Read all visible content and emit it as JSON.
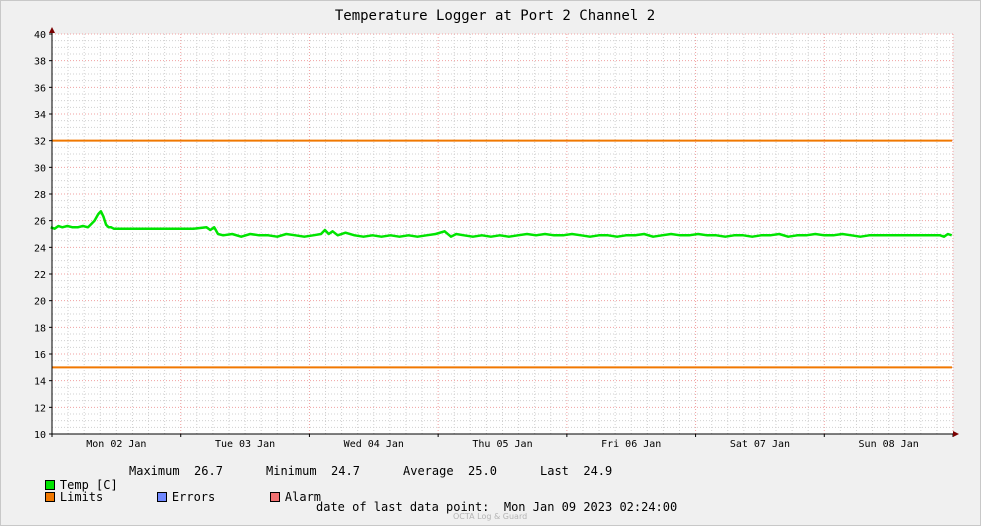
{
  "chart_data": {
    "type": "line",
    "title": "Temperature Logger at Port 2 Channel 2",
    "ylim": [
      10,
      40
    ],
    "yticks": [
      10,
      12,
      14,
      16,
      18,
      20,
      22,
      24,
      26,
      28,
      30,
      32,
      34,
      36,
      38,
      40
    ],
    "xlim": [
      0,
      7
    ],
    "x_unit": "days since Mon 02 Jan 2023 00:00 (day labels centered at noon)",
    "x_tick_labels": [
      "Mon 02 Jan",
      "Tue 03 Jan",
      "Wed 04 Jan",
      "Thu 05 Jan",
      "Fri 06 Jan",
      "Sat 07 Jan",
      "Sun 08 Jan"
    ],
    "grid": true,
    "series": [
      {
        "name": "Temp [C]",
        "color": "#00e400",
        "x": [
          -0.01,
          0.02,
          0.05,
          0.08,
          0.12,
          0.16,
          0.2,
          0.24,
          0.28,
          0.3,
          0.33,
          0.36,
          0.38,
          0.4,
          0.42,
          0.44,
          0.46,
          0.48,
          0.5,
          0.55,
          0.65,
          0.8,
          0.95,
          1.1,
          1.2,
          1.23,
          1.26,
          1.29,
          1.33,
          1.4,
          1.47,
          1.54,
          1.61,
          1.68,
          1.75,
          1.82,
          1.89,
          1.96,
          2.03,
          2.09,
          2.12,
          2.15,
          2.18,
          2.22,
          2.28,
          2.35,
          2.42,
          2.49,
          2.56,
          2.63,
          2.7,
          2.77,
          2.84,
          2.91,
          2.98,
          3.05,
          3.1,
          3.14,
          3.2,
          3.27,
          3.34,
          3.41,
          3.48,
          3.55,
          3.62,
          3.69,
          3.76,
          3.83,
          3.9,
          3.97,
          4.04,
          4.11,
          4.18,
          4.25,
          4.32,
          4.39,
          4.46,
          4.53,
          4.6,
          4.67,
          4.74,
          4.81,
          4.88,
          4.95,
          5.02,
          5.09,
          5.16,
          5.23,
          5.3,
          5.37,
          5.44,
          5.51,
          5.58,
          5.65,
          5.72,
          5.79,
          5.86,
          5.93,
          6.0,
          6.07,
          6.14,
          6.21,
          6.28,
          6.35,
          6.42,
          6.49,
          6.56,
          6.63,
          6.7,
          6.77,
          6.84,
          6.9,
          6.93,
          6.96,
          6.99
        ],
        "values": [
          25.5,
          25.4,
          25.6,
          25.5,
          25.6,
          25.5,
          25.5,
          25.6,
          25.5,
          25.7,
          26.0,
          26.5,
          26.7,
          26.3,
          25.7,
          25.5,
          25.5,
          25.4,
          25.4,
          25.4,
          25.4,
          25.4,
          25.4,
          25.4,
          25.5,
          25.3,
          25.5,
          25.0,
          24.9,
          25.0,
          24.8,
          25.0,
          24.9,
          24.9,
          24.8,
          25.0,
          24.9,
          24.8,
          24.9,
          25.0,
          25.3,
          25.0,
          25.2,
          24.9,
          25.1,
          24.9,
          24.8,
          24.9,
          24.8,
          24.9,
          24.8,
          24.9,
          24.8,
          24.9,
          25.0,
          25.2,
          24.8,
          25.0,
          24.9,
          24.8,
          24.9,
          24.8,
          24.9,
          24.8,
          24.9,
          25.0,
          24.9,
          25.0,
          24.9,
          24.9,
          25.0,
          24.9,
          24.8,
          24.9,
          24.9,
          24.8,
          24.9,
          24.9,
          25.0,
          24.8,
          24.9,
          25.0,
          24.9,
          24.9,
          25.0,
          24.9,
          24.9,
          24.8,
          24.9,
          24.9,
          24.8,
          24.9,
          24.9,
          25.0,
          24.8,
          24.9,
          24.9,
          25.0,
          24.9,
          24.9,
          25.0,
          24.9,
          24.8,
          24.9,
          24.9,
          24.9,
          24.9,
          24.9,
          24.9,
          24.9,
          24.9,
          24.9,
          24.8,
          25.0,
          24.9
        ]
      },
      {
        "name": "Limits",
        "color": "#f07800",
        "constant": 32
      },
      {
        "name": "Limits",
        "color": "#f07800",
        "constant": 15
      }
    ]
  },
  "legend": {
    "temp_label": "Temp [C]",
    "max_label": "Maximum",
    "max_value": "26.7",
    "min_label": "Minimum",
    "min_value": "24.7",
    "avg_label": "Average",
    "avg_value": "25.0",
    "last_label": "Last",
    "last_value": "24.9",
    "limits_label": "Limits",
    "errors_label": "Errors",
    "alarm_label": "Alarm"
  },
  "colors": {
    "temp": "#00e400",
    "limits": "#f07800",
    "errors": "#7088ff",
    "alarm": "#f07070",
    "grid_major": "#f0a0a0",
    "grid_minor": "#d0d0d0"
  },
  "footer": {
    "last_point_label": "date of last data point:",
    "last_point_value": "Mon Jan 09 2023 02:24:00",
    "credit": "OCTA Log & Guard"
  }
}
